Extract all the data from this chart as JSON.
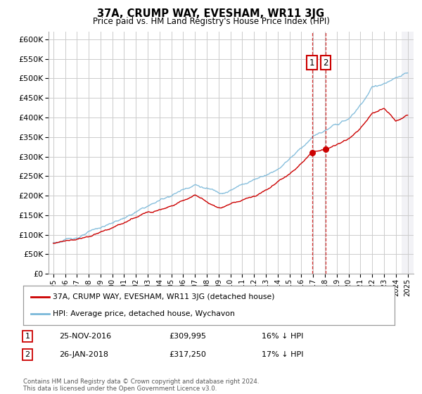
{
  "title": "37A, CRUMP WAY, EVESHAM, WR11 3JG",
  "subtitle": "Price paid vs. HM Land Registry's House Price Index (HPI)",
  "ylim": [
    0,
    620000
  ],
  "yticks": [
    0,
    50000,
    100000,
    150000,
    200000,
    250000,
    300000,
    350000,
    400000,
    450000,
    500000,
    550000,
    600000
  ],
  "x_start_year": 1995,
  "x_end_year": 2025,
  "xtick_years": [
    1995,
    1996,
    1997,
    1998,
    1999,
    2000,
    2001,
    2002,
    2003,
    2004,
    2005,
    2006,
    2007,
    2008,
    2009,
    2010,
    2011,
    2012,
    2013,
    2014,
    2015,
    2016,
    2017,
    2018,
    2019,
    2020,
    2021,
    2022,
    2023,
    2024,
    2025
  ],
  "transaction1_date": 2016.9,
  "transaction1_price": 309995,
  "transaction1_text": "25-NOV-2016",
  "transaction1_pct": "16% ↓ HPI",
  "transaction2_date": 2018.07,
  "transaction2_price": 317250,
  "transaction2_text": "26-JAN-2018",
  "transaction2_pct": "17% ↓ HPI",
  "hpi_color": "#7ab8d9",
  "price_color": "#cc0000",
  "vline_color": "#cc0000",
  "legend_label_red": "37A, CRUMP WAY, EVESHAM, WR11 3JG (detached house)",
  "legend_label_blue": "HPI: Average price, detached house, Wychavon",
  "footer": "Contains HM Land Registry data © Crown copyright and database right 2024.\nThis data is licensed under the Open Government Licence v3.0.",
  "background_color": "#ffffff",
  "grid_color": "#cccccc"
}
